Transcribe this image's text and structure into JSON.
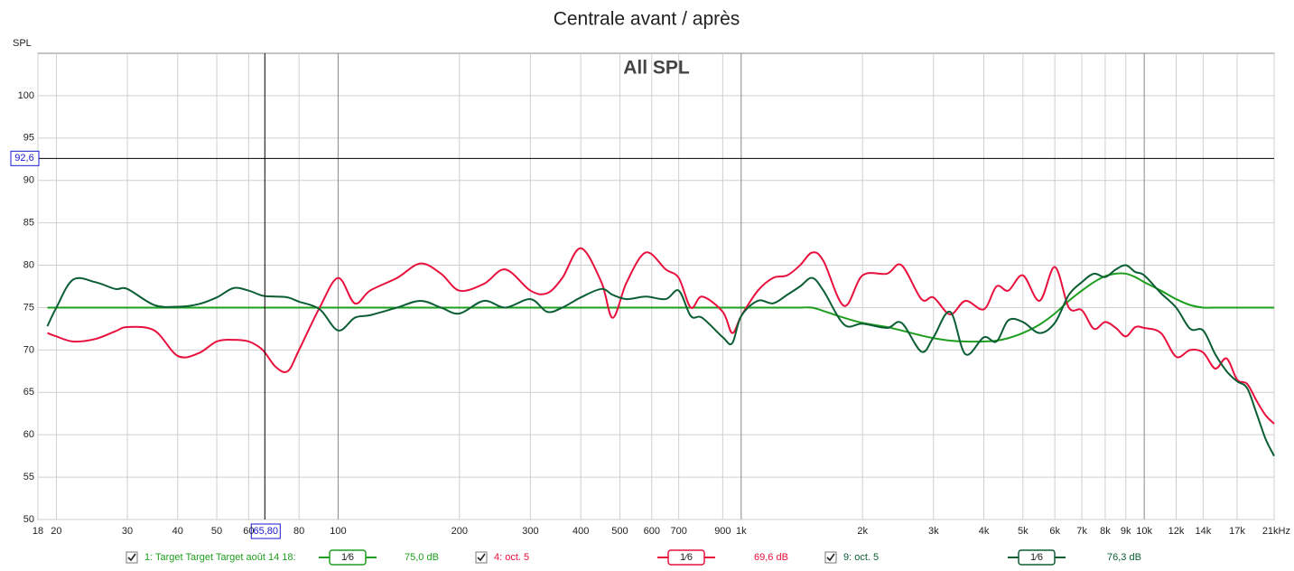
{
  "chart_data": {
    "type": "line",
    "title": "Centrale avant / après",
    "annotation": "All SPL",
    "y_label": "SPL",
    "log_x": true,
    "grid": true,
    "xlim": [
      18,
      21000
    ],
    "ylim": [
      50,
      105
    ],
    "yticks": [
      50,
      55,
      60,
      65,
      70,
      75,
      80,
      85,
      90,
      95,
      100
    ],
    "xticks": [
      18,
      20,
      30,
      40,
      50,
      60,
      80,
      100,
      200,
      300,
      400,
      500,
      600,
      700,
      900,
      {
        "value": 1000,
        "label": "1k"
      },
      {
        "value": 2000,
        "label": "2k"
      },
      {
        "value": 3000,
        "label": "3k"
      },
      {
        "value": 4000,
        "label": "4k"
      },
      {
        "value": 5000,
        "label": "5k"
      },
      {
        "value": 6000,
        "label": "6k"
      },
      {
        "value": 7000,
        "label": "7k"
      },
      {
        "value": 8000,
        "label": "8k"
      },
      {
        "value": 9000,
        "label": "9k"
      },
      {
        "value": 10000,
        "label": "10k"
      },
      {
        "value": 12000,
        "label": "12k"
      },
      {
        "value": 14000,
        "label": "14k"
      },
      {
        "value": 17000,
        "label": "17k"
      },
      {
        "value": 21000,
        "label": "21kHz"
      }
    ],
    "cursor": {
      "x": 65.8,
      "x_label": "65,80",
      "y": 92.6,
      "y_label": "92,6"
    },
    "x": [
      19,
      20,
      22,
      25,
      28,
      30,
      35,
      40,
      45,
      50,
      55,
      60,
      65,
      70,
      75,
      80,
      90,
      100,
      110,
      120,
      140,
      160,
      180,
      200,
      230,
      260,
      300,
      330,
      360,
      400,
      450,
      480,
      520,
      580,
      650,
      700,
      750,
      800,
      900,
      950,
      1000,
      1100,
      1200,
      1300,
      1400,
      1500,
      1600,
      1800,
      2000,
      2300,
      2500,
      2800,
      3000,
      3300,
      3600,
      4000,
      4300,
      4600,
      5000,
      5500,
      6000,
      6500,
      7000,
      7500,
      8000,
      8500,
      9000,
      9500,
      10000,
      11000,
      12000,
      13000,
      14000,
      15000,
      16000,
      17000,
      18000,
      19000,
      20000,
      21000
    ],
    "series": [
      {
        "name": "1: Target Target Target août 14 18:",
        "color": "#1e9e1e",
        "smoothing": "1⁄6",
        "readout": "75,0 dB",
        "values": [
          75,
          75,
          75,
          75,
          75,
          75,
          75,
          75,
          75,
          75,
          75,
          75,
          75,
          75,
          75,
          75,
          75,
          75,
          75,
          75,
          75,
          75,
          75,
          75,
          75,
          75,
          75,
          75,
          75,
          75,
          75,
          75,
          75,
          75,
          75,
          75,
          75,
          75,
          75,
          75,
          75,
          75,
          75,
          75,
          75,
          75,
          74.6,
          73.8,
          73.2,
          72.7,
          72.3,
          71.7,
          71.4,
          71.1,
          71,
          71,
          71.1,
          71.4,
          72,
          73,
          74.3,
          75.8,
          77,
          78,
          78.7,
          79,
          79,
          78.6,
          78,
          77,
          76,
          75.3,
          75,
          75,
          75,
          75,
          75,
          75,
          75,
          75
        ]
      },
      {
        "name": "4: oct. 5",
        "color": "#e8103c",
        "smoothing": "1⁄6",
        "readout": "69,6 dB",
        "values": [
          72,
          71.6,
          71,
          71.3,
          72.2,
          72.7,
          72.3,
          69.3,
          69.6,
          71,
          71.2,
          71,
          70,
          68,
          67.5,
          70,
          75,
          78.5,
          75.5,
          77,
          78.5,
          80.2,
          79,
          77,
          77.8,
          79.5,
          77,
          76.7,
          78.5,
          82,
          78,
          73.8,
          78,
          81.5,
          79.5,
          78.5,
          75,
          76.3,
          74.5,
          72,
          74,
          77,
          78.5,
          78.8,
          80,
          81.5,
          80.5,
          75.2,
          78.8,
          79,
          80,
          76,
          76.2,
          74.2,
          75.8,
          74.8,
          77.5,
          77,
          78.8,
          75.8,
          79.8,
          75,
          74.7,
          72.5,
          73.3,
          72.6,
          71.6,
          72.7,
          72.6,
          72,
          69.2,
          70,
          69.7,
          67.8,
          69,
          66.5,
          66,
          64,
          62.3,
          61.3
        ]
      },
      {
        "name": "9: oct. 5",
        "color": "#0b5e33",
        "smoothing": "1⁄6",
        "readout": "76,3 dB",
        "values": [
          72.8,
          75,
          78.3,
          78,
          77.2,
          77.2,
          75.3,
          75.1,
          75.4,
          76.2,
          77.3,
          77,
          76.4,
          76.3,
          76.2,
          75.7,
          74.8,
          72.3,
          73.8,
          74.1,
          75,
          75.8,
          75,
          74.3,
          75.8,
          75,
          76,
          74.5,
          75,
          76.2,
          77.2,
          76.5,
          76,
          76.3,
          76,
          77,
          74,
          73.8,
          71.5,
          70.8,
          74,
          75.8,
          75.5,
          76.5,
          77.5,
          78.5,
          77,
          73,
          73.1,
          72.6,
          73.2,
          69.8,
          71.5,
          74.5,
          69.5,
          71.5,
          71,
          73.5,
          73.3,
          72,
          73.2,
          76.5,
          78,
          79,
          78.6,
          79.5,
          80,
          79.2,
          78.8,
          76.7,
          75,
          72.5,
          72.3,
          69.5,
          67.5,
          66.3,
          65.5,
          62.5,
          59.5,
          57.5
        ]
      }
    ]
  }
}
